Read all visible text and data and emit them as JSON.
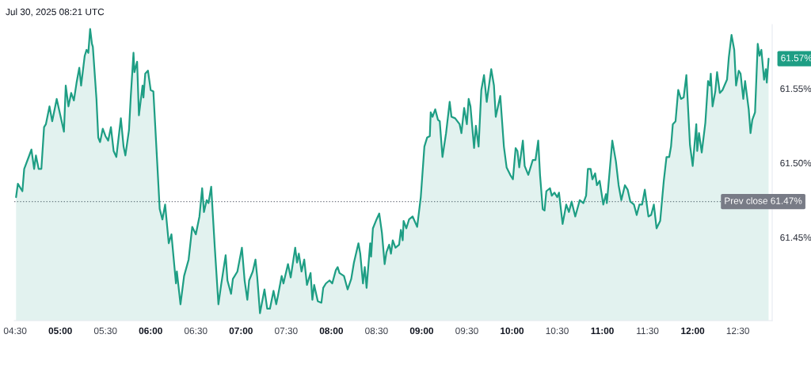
{
  "chart_data": {
    "type": "area",
    "title": "Jul 30, 2025 08:21 UTC",
    "x": [
      4.51,
      4.53,
      4.58,
      4.6,
      4.65,
      4.68,
      4.71,
      4.73,
      4.76,
      4.79,
      4.82,
      4.84,
      4.88,
      4.91,
      4.96,
      5.04,
      5.06,
      5.09,
      5.12,
      5.15,
      5.18,
      5.21,
      5.23,
      5.27,
      5.29,
      5.31,
      5.33,
      5.35,
      5.36,
      5.4,
      5.42,
      5.44,
      5.47,
      5.5,
      5.53,
      5.56,
      5.59,
      5.62,
      5.67,
      5.7,
      5.72,
      5.76,
      5.78,
      5.81,
      5.82,
      5.85,
      5.87,
      5.91,
      5.92,
      5.94,
      5.97,
      6.0,
      6.03,
      6.07,
      6.1,
      6.13,
      6.16,
      6.2,
      6.23,
      6.28,
      6.29,
      6.33,
      6.37,
      6.42,
      6.46,
      6.5,
      6.54,
      6.57,
      6.59,
      6.62,
      6.64,
      6.67,
      6.71,
      6.75,
      6.78,
      6.83,
      6.85,
      6.89,
      6.91,
      6.96,
      7.01,
      7.04,
      7.07,
      7.09,
      7.13,
      7.16,
      7.18,
      7.21,
      7.26,
      7.29,
      7.32,
      7.36,
      7.39,
      7.41,
      7.45,
      7.47,
      7.52,
      7.55,
      7.6,
      7.62,
      7.64,
      7.67,
      7.7,
      7.73,
      7.77,
      7.79,
      7.81,
      7.85,
      7.89,
      7.91,
      7.94,
      7.98,
      8.01,
      8.05,
      8.07,
      8.09,
      8.14,
      8.18,
      8.22,
      8.25,
      8.3,
      8.32,
      8.35,
      8.37,
      8.39,
      8.43,
      8.44,
      8.46,
      8.5,
      8.53,
      8.56,
      8.59,
      8.61,
      8.64,
      8.66,
      8.68,
      8.71,
      8.75,
      8.77,
      8.79,
      8.8,
      8.83,
      8.86,
      8.9,
      8.95,
      8.99,
      9.03,
      9.06,
      9.09,
      9.1,
      9.12,
      9.15,
      9.18,
      9.2,
      9.23,
      9.27,
      9.31,
      9.33,
      9.37,
      9.42,
      9.44,
      9.47,
      9.5,
      9.52,
      9.54,
      9.58,
      9.6,
      9.63,
      9.66,
      9.69,
      9.72,
      9.77,
      9.8,
      9.82,
      9.87,
      9.91,
      9.94,
      9.98,
      10.01,
      10.04,
      10.06,
      10.08,
      10.12,
      10.14,
      10.18,
      10.23,
      10.26,
      10.29,
      10.31,
      10.34,
      10.36,
      10.38,
      10.42,
      10.44,
      10.47,
      10.5,
      10.52,
      10.56,
      10.6,
      10.63,
      10.66,
      10.7,
      10.75,
      10.79,
      10.82,
      10.84,
      10.87,
      10.89,
      10.92,
      10.94,
      10.97,
      11.01,
      11.04,
      11.05,
      11.08,
      11.11,
      11.15,
      11.18,
      11.21,
      11.25,
      11.28,
      11.31,
      11.35,
      11.38,
      11.41,
      11.44,
      11.47,
      11.51,
      11.54,
      11.57,
      11.6,
      11.64,
      11.68,
      11.71,
      11.74,
      11.76,
      11.78,
      11.81,
      11.84,
      11.87,
      11.9,
      11.93,
      11.97,
      12.0,
      12.04,
      12.05,
      12.07,
      12.1,
      12.14,
      12.17,
      12.19,
      12.2,
      12.22,
      12.25,
      12.27,
      12.3,
      12.33,
      12.38,
      12.4,
      12.43,
      12.46,
      12.48,
      12.51,
      12.53,
      12.56,
      12.58,
      12.62,
      12.64,
      12.66,
      12.69,
      12.72,
      12.74,
      12.76,
      12.79,
      12.81,
      12.82,
      12.84
    ],
    "series": [
      {
        "color": "#1e9e84",
        "values": [
          61.477,
          61.486,
          61.481,
          61.496,
          61.504,
          61.509,
          61.496,
          61.505,
          61.496,
          61.496,
          61.524,
          61.526,
          61.538,
          61.528,
          61.543,
          61.521,
          61.552,
          61.538,
          61.547,
          61.542,
          61.554,
          61.564,
          61.552,
          61.572,
          61.576,
          61.574,
          61.59,
          61.58,
          61.578,
          61.543,
          61.517,
          61.514,
          61.523,
          61.518,
          61.515,
          61.524,
          61.508,
          61.504,
          61.53,
          61.511,
          61.505,
          61.522,
          61.545,
          61.574,
          61.561,
          61.568,
          61.532,
          61.552,
          61.544,
          61.56,
          61.562,
          61.549,
          61.548,
          61.503,
          61.469,
          61.462,
          61.472,
          61.446,
          61.452,
          61.419,
          61.427,
          61.405,
          61.424,
          61.435,
          61.457,
          61.452,
          61.464,
          61.483,
          61.467,
          61.475,
          61.473,
          61.484,
          61.443,
          61.405,
          61.418,
          61.438,
          61.421,
          61.412,
          61.422,
          61.427,
          61.443,
          61.421,
          61.408,
          61.421,
          61.427,
          61.435,
          61.423,
          61.399,
          61.415,
          61.402,
          61.402,
          61.414,
          61.405,
          61.411,
          61.424,
          61.419,
          61.432,
          61.423,
          61.443,
          61.433,
          61.439,
          61.427,
          61.435,
          61.418,
          61.426,
          61.408,
          61.418,
          61.407,
          61.406,
          61.416,
          61.419,
          61.421,
          61.419,
          61.428,
          61.43,
          61.426,
          61.424,
          61.415,
          61.422,
          61.433,
          61.446,
          61.439,
          61.419,
          61.43,
          61.416,
          61.446,
          61.437,
          61.456,
          61.462,
          61.466,
          61.453,
          61.432,
          61.44,
          61.445,
          61.439,
          61.448,
          61.443,
          61.445,
          61.455,
          61.448,
          61.461,
          61.456,
          61.462,
          61.464,
          61.457,
          61.477,
          61.511,
          61.517,
          61.518,
          61.534,
          61.531,
          61.536,
          61.529,
          61.528,
          61.504,
          61.52,
          61.541,
          61.531,
          61.53,
          61.526,
          61.52,
          61.537,
          61.526,
          61.543,
          61.538,
          61.51,
          61.525,
          61.511,
          61.549,
          61.559,
          61.541,
          61.563,
          61.552,
          61.531,
          61.545,
          61.511,
          61.497,
          61.492,
          61.489,
          61.51,
          61.508,
          61.497,
          61.515,
          61.498,
          61.492,
          61.502,
          61.502,
          61.515,
          61.492,
          61.469,
          61.468,
          61.481,
          61.483,
          61.478,
          61.48,
          61.477,
          61.48,
          61.459,
          61.472,
          61.467,
          61.474,
          61.464,
          61.475,
          61.473,
          61.478,
          61.496,
          61.496,
          61.489,
          61.493,
          61.485,
          61.488,
          61.472,
          61.479,
          61.473,
          61.494,
          61.515,
          61.501,
          61.485,
          61.475,
          61.485,
          61.482,
          61.474,
          61.472,
          61.465,
          61.472,
          61.472,
          61.482,
          61.464,
          61.465,
          61.472,
          61.456,
          61.461,
          61.488,
          61.504,
          61.504,
          61.511,
          61.526,
          61.528,
          61.549,
          61.543,
          61.544,
          61.559,
          61.512,
          61.498,
          61.526,
          61.508,
          61.52,
          61.507,
          61.527,
          61.555,
          61.552,
          61.56,
          61.538,
          61.548,
          61.561,
          61.547,
          61.549,
          61.556,
          61.571,
          61.586,
          61.576,
          61.552,
          61.562,
          61.56,
          61.543,
          61.555,
          61.536,
          61.52,
          61.529,
          61.534,
          61.58,
          61.572,
          61.576,
          61.556,
          61.563,
          61.554,
          61.57
        ]
      }
    ],
    "xlim": [
      4.49,
      12.88
    ],
    "xticks": [
      {
        "value": 4.5,
        "label": "04:30"
      },
      {
        "value": 5,
        "label": "05:00"
      },
      {
        "value": 5.5,
        "label": "05:30"
      },
      {
        "value": 6,
        "label": "06:00"
      },
      {
        "value": 6.5,
        "label": "06:30"
      },
      {
        "value": 7,
        "label": "07:00"
      },
      {
        "value": 7.5,
        "label": "07:30"
      },
      {
        "value": 8,
        "label": "08:00"
      },
      {
        "value": 8.5,
        "label": "08:30"
      },
      {
        "value": 9,
        "label": "09:00"
      },
      {
        "value": 9.5,
        "label": "09:30"
      },
      {
        "value": 10,
        "label": "10:00"
      },
      {
        "value": 10.5,
        "label": "10:30"
      },
      {
        "value": 11,
        "label": "11:00"
      },
      {
        "value": 11.5,
        "label": "11:30"
      },
      {
        "value": 12,
        "label": "12:00"
      },
      {
        "value": 12.5,
        "label": "12:30"
      }
    ],
    "ylim": [
      61.394,
      61.593
    ],
    "yticks": [
      {
        "value": 61.45,
        "label": "61.45%"
      },
      {
        "value": 61.5,
        "label": "61.50%"
      },
      {
        "value": 61.55,
        "label": "61.55%"
      }
    ],
    "ref_lines": [
      {
        "axis": "y",
        "value": 61.474,
        "label": "Prev close 61.47%",
        "color": "#787b86",
        "line_style": "dotted"
      }
    ],
    "annotations": [
      {
        "text": "61.57%",
        "x": 12.84,
        "y": 61.57
      }
    ]
  }
}
